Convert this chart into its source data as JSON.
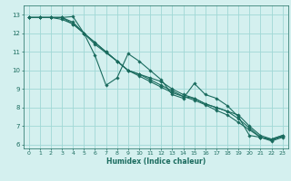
{
  "xlabel": "Humidex (Indice chaleur)",
  "bg_color": "#d4f0ef",
  "grid_color": "#a0d8d5",
  "line_color": "#1a6b5e",
  "xlim": [
    -0.5,
    23.5
  ],
  "ylim": [
    5.8,
    13.5
  ],
  "yticks": [
    6,
    7,
    8,
    9,
    10,
    11,
    12,
    13
  ],
  "xticks": [
    0,
    1,
    2,
    3,
    4,
    5,
    6,
    7,
    8,
    9,
    10,
    11,
    12,
    13,
    14,
    15,
    16,
    17,
    18,
    19,
    20,
    21,
    22,
    23
  ],
  "lines": [
    {
      "x": [
        0,
        1,
        2,
        3,
        4,
        5,
        6,
        7,
        8,
        9,
        10,
        11,
        12,
        13,
        14,
        15,
        16,
        17,
        18,
        19,
        20,
        21,
        22,
        23
      ],
      "y": [
        12.85,
        12.85,
        12.85,
        12.85,
        12.9,
        12.0,
        10.8,
        9.2,
        9.6,
        10.9,
        10.5,
        10.0,
        9.5,
        8.7,
        8.5,
        9.3,
        8.7,
        8.5,
        8.1,
        7.5,
        6.5,
        6.4,
        6.3,
        6.5
      ]
    },
    {
      "x": [
        0,
        1,
        2,
        3,
        4,
        5,
        6,
        7,
        8,
        9,
        10,
        11,
        12,
        13,
        14,
        15,
        16,
        17,
        18,
        19,
        20,
        21,
        22,
        23
      ],
      "y": [
        12.85,
        12.85,
        12.85,
        12.85,
        12.6,
        12.0,
        11.5,
        11.0,
        10.5,
        10.0,
        9.8,
        9.6,
        9.4,
        9.0,
        8.7,
        8.5,
        8.2,
        8.0,
        7.8,
        7.6,
        7.0,
        6.5,
        6.3,
        6.5
      ]
    },
    {
      "x": [
        0,
        1,
        2,
        3,
        4,
        5,
        6,
        7,
        8,
        9,
        10,
        11,
        12,
        13,
        14,
        15,
        16,
        17,
        18,
        19,
        20,
        21,
        22,
        23
      ],
      "y": [
        12.85,
        12.85,
        12.85,
        12.85,
        12.5,
        12.0,
        11.5,
        11.0,
        10.5,
        10.0,
        9.8,
        9.5,
        9.2,
        8.9,
        8.6,
        8.5,
        8.2,
        8.0,
        7.8,
        7.4,
        6.9,
        6.4,
        6.25,
        6.45
      ]
    },
    {
      "x": [
        0,
        1,
        2,
        3,
        4,
        5,
        6,
        7,
        8,
        9,
        10,
        11,
        12,
        13,
        14,
        15,
        16,
        17,
        18,
        19,
        20,
        21,
        22,
        23
      ],
      "y": [
        12.85,
        12.85,
        12.85,
        12.75,
        12.5,
        12.0,
        11.4,
        10.95,
        10.5,
        10.0,
        9.7,
        9.4,
        9.1,
        8.8,
        8.6,
        8.4,
        8.15,
        7.85,
        7.6,
        7.2,
        6.8,
        6.4,
        6.2,
        6.4
      ]
    }
  ]
}
